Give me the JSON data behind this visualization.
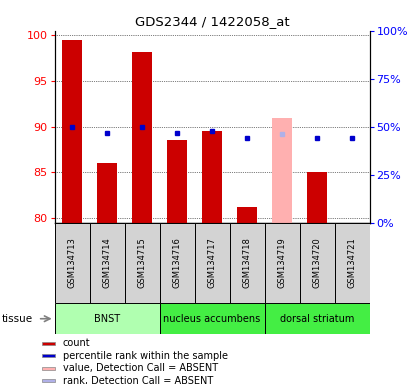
{
  "title": "GDS2344 / 1422058_at",
  "samples": [
    "GSM134713",
    "GSM134714",
    "GSM134715",
    "GSM134716",
    "GSM134717",
    "GSM134718",
    "GSM134719",
    "GSM134720",
    "GSM134721"
  ],
  "bar_values": [
    99.5,
    86.0,
    98.2,
    88.5,
    89.5,
    81.2,
    null,
    85.0,
    null
  ],
  "bar_absent": [
    null,
    null,
    null,
    null,
    null,
    null,
    91.0,
    null,
    null
  ],
  "dot_values": [
    90.0,
    89.3,
    90.0,
    89.3,
    89.5,
    88.8,
    null,
    88.8,
    88.8
  ],
  "dot_absent": [
    null,
    null,
    null,
    null,
    null,
    null,
    89.2,
    null,
    null
  ],
  "ylim_left": [
    79.5,
    100.5
  ],
  "yticks_left": [
    80,
    85,
    90,
    95,
    100
  ],
  "right_yticks_pct": [
    0,
    25,
    50,
    75,
    100
  ],
  "right_ytick_labels": [
    "0%",
    "25%",
    "50%",
    "75%",
    "100%"
  ],
  "bar_color": "#cc0000",
  "bar_absent_color": "#ffb0b0",
  "dot_color": "#0000cc",
  "dot_absent_color": "#b0b0e8",
  "groups": [
    {
      "label": "BNST",
      "start": 0,
      "end": 3,
      "color": "#b0ffb0"
    },
    {
      "label": "nucleus accumbens",
      "start": 3,
      "end": 6,
      "color": "#44ee44"
    },
    {
      "label": "dorsal striatum",
      "start": 6,
      "end": 9,
      "color": "#44ee44"
    }
  ],
  "tissue_label": "tissue",
  "legend_items": [
    {
      "color": "#cc0000",
      "label": "count",
      "marker": "s"
    },
    {
      "color": "#0000cc",
      "label": "percentile rank within the sample",
      "marker": "s"
    },
    {
      "color": "#ffb0b0",
      "label": "value, Detection Call = ABSENT",
      "marker": "s"
    },
    {
      "color": "#b0b0e8",
      "label": "rank, Detection Call = ABSENT",
      "marker": "s"
    }
  ],
  "bar_width": 0.55,
  "plot_bg": "#ffffff"
}
